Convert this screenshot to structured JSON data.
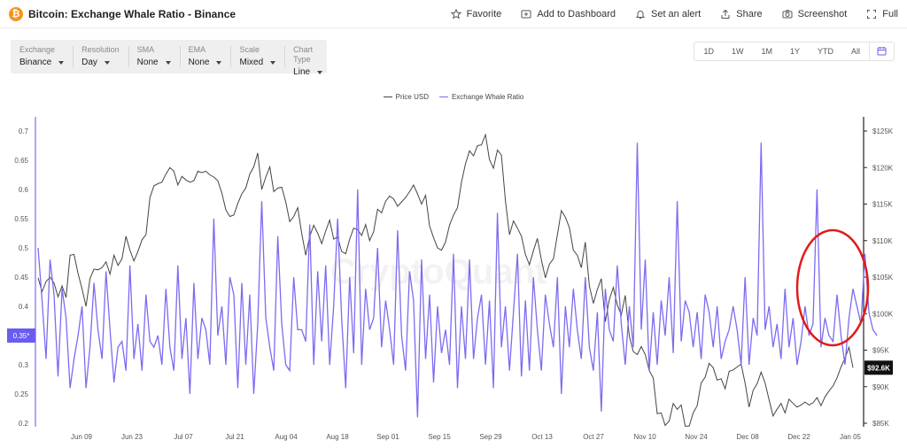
{
  "header": {
    "title": "Bitcoin: Exchange Whale Ratio - Binance",
    "actions": [
      {
        "label": "Favorite",
        "icon": "star-icon"
      },
      {
        "label": "Add to Dashboard",
        "icon": "dashboard-add-icon"
      },
      {
        "label": "Set an alert",
        "icon": "bell-icon"
      },
      {
        "label": "Share",
        "icon": "share-icon"
      },
      {
        "label": "Screenshot",
        "icon": "camera-icon"
      },
      {
        "label": "Full",
        "icon": "fullscreen-icon"
      }
    ]
  },
  "controls": [
    {
      "label": "Exchange",
      "value": "Binance"
    },
    {
      "label": "Resolution",
      "value": "Day"
    },
    {
      "label": "SMA",
      "value": "None"
    },
    {
      "label": "EMA",
      "value": "None"
    },
    {
      "label": "Scale",
      "value": "Mixed"
    },
    {
      "label": "Chart Type",
      "value": "Line"
    }
  ],
  "ranges": [
    "1D",
    "1W",
    "1M",
    "1Y",
    "YTD",
    "All"
  ],
  "watermark": "CryptoQuant",
  "colors": {
    "price": "#444444",
    "ratio": "#7b6cf0",
    "annotation": "#e01b1b"
  },
  "chart_data": {
    "type": "line",
    "legend_position": "top-center",
    "x_ticks": [
      "Jun 09",
      "Jun 23",
      "Jul 07",
      "Jul 21",
      "Aug 04",
      "Aug 18",
      "Sep 01",
      "Sep 15",
      "Sep 29",
      "Oct 13",
      "Oct 27",
      "Nov 10",
      "Nov 24",
      "Dec 08",
      "Dec 22",
      "Jan 05"
    ],
    "y_left_ticks": [
      "0.7",
      "0.65",
      "0.6",
      "0.55",
      "0.5",
      "0.45",
      "0.4",
      "0.35",
      "0.3",
      "0.25",
      "0.2"
    ],
    "y_left_range": [
      0.2,
      0.7
    ],
    "y_right_ticks": [
      "$125K",
      "$120K",
      "$115K",
      "$110K",
      "$105K",
      "$100K",
      "$95K",
      "$90K",
      "$85K"
    ],
    "y_right_range": [
      85000,
      125000
    ],
    "current_left_label": "0.35*",
    "current_left_value": 0.35,
    "current_right_label": "$92.6K",
    "current_right_value": 92600,
    "series": [
      {
        "name": "Price USD",
        "axis": "right",
        "values": [
          104900,
          103000,
          104400,
          105000,
          104200,
          102300,
          103800,
          102200,
          108000,
          108100,
          105500,
          103400,
          101000,
          104800,
          106100,
          106000,
          106300,
          107100,
          105400,
          108000,
          106600,
          107500,
          110600,
          108700,
          107200,
          108500,
          110100,
          110800,
          115900,
          117500,
          117800,
          118000,
          119100,
          120000,
          119500,
          117600,
          118800,
          118300,
          118000,
          118200,
          119500,
          119300,
          119500,
          119000,
          118700,
          118200,
          116500,
          114200,
          113300,
          113500,
          115100,
          116400,
          117200,
          119100,
          120100,
          122000,
          117000,
          118700,
          120100,
          116700,
          117200,
          117300,
          115300,
          112600,
          113300,
          114500,
          111000,
          108000,
          110600,
          112100,
          111000,
          109600,
          111300,
          112800,
          110200,
          110500,
          108500,
          108200,
          110200,
          111700,
          111500,
          110700,
          112200,
          110000,
          111200,
          114300,
          113800,
          115400,
          116100,
          115700,
          114700,
          115300,
          115900,
          116700,
          117600,
          116400,
          115000,
          116200,
          112000,
          110400,
          109000,
          108700,
          109800,
          112100,
          113500,
          114500,
          118000,
          120500,
          122300,
          121600,
          123000,
          123100,
          124500,
          121100,
          119900,
          122400,
          121700,
          115500,
          110800,
          112700,
          111700,
          110600,
          108100,
          106700,
          108600,
          110300,
          107400,
          104900,
          106800,
          107500,
          110800,
          114100,
          113200,
          111800,
          108700,
          108000,
          106300,
          109800,
          103800,
          101400,
          103300,
          104800,
          98900,
          101900,
          103600,
          101200,
          99800,
          102500,
          96900,
          94800,
          94400,
          95500,
          94400,
          92200,
          91200,
          86300,
          86400,
          84700,
          85300,
          87700,
          86900,
          87500,
          84600,
          84600,
          86400,
          87400,
          90500,
          91300,
          93200,
          92600,
          90900,
          91100,
          89700,
          92100,
          92300,
          92700,
          93100,
          90500,
          87200,
          89500,
          90400,
          92000,
          90500,
          88200,
          86000,
          86900,
          87700,
          86400,
          88300,
          87700,
          87200,
          87500,
          87900,
          87500,
          87800,
          88500,
          87400,
          88600,
          89400,
          90100,
          91200,
          92700,
          93900,
          95400,
          92600
        ]
      },
      {
        "name": "Exchange Whale Ratio",
        "axis": "left",
        "values": [
          0.5,
          0.41,
          0.31,
          0.48,
          0.42,
          0.28,
          0.43,
          0.38,
          0.26,
          0.31,
          0.35,
          0.4,
          0.26,
          0.33,
          0.44,
          0.36,
          0.31,
          0.46,
          0.36,
          0.27,
          0.33,
          0.34,
          0.29,
          0.47,
          0.31,
          0.37,
          0.29,
          0.42,
          0.34,
          0.33,
          0.35,
          0.3,
          0.43,
          0.33,
          0.29,
          0.47,
          0.31,
          0.38,
          0.25,
          0.44,
          0.31,
          0.38,
          0.36,
          0.3,
          0.55,
          0.35,
          0.4,
          0.3,
          0.45,
          0.42,
          0.26,
          0.44,
          0.3,
          0.42,
          0.25,
          0.37,
          0.58,
          0.38,
          0.33,
          0.29,
          0.52,
          0.37,
          0.3,
          0.29,
          0.45,
          0.36,
          0.36,
          0.34,
          0.54,
          0.3,
          0.46,
          0.34,
          0.47,
          0.3,
          0.4,
          0.55,
          0.38,
          0.26,
          0.45,
          0.32,
          0.6,
          0.3,
          0.43,
          0.36,
          0.38,
          0.5,
          0.33,
          0.41,
          0.36,
          0.3,
          0.53,
          0.35,
          0.29,
          0.46,
          0.41,
          0.21,
          0.48,
          0.31,
          0.42,
          0.27,
          0.4,
          0.32,
          0.36,
          0.3,
          0.49,
          0.26,
          0.4,
          0.31,
          0.48,
          0.31,
          0.38,
          0.42,
          0.3,
          0.41,
          0.26,
          0.56,
          0.33,
          0.4,
          0.29,
          0.39,
          0.49,
          0.28,
          0.41,
          0.29,
          0.45,
          0.36,
          0.29,
          0.42,
          0.37,
          0.33,
          0.45,
          0.25,
          0.4,
          0.33,
          0.43,
          0.36,
          0.31,
          0.45,
          0.33,
          0.29,
          0.39,
          0.22,
          0.43,
          0.36,
          0.34,
          0.47,
          0.37,
          0.3,
          0.4,
          0.33,
          0.68,
          0.36,
          0.48,
          0.29,
          0.39,
          0.3,
          0.41,
          0.35,
          0.45,
          0.32,
          0.58,
          0.34,
          0.41,
          0.39,
          0.33,
          0.39,
          0.31,
          0.42,
          0.39,
          0.33,
          0.4,
          0.31,
          0.34,
          0.36,
          0.4,
          0.36,
          0.3,
          0.45,
          0.3,
          0.38,
          0.35,
          0.68,
          0.36,
          0.4,
          0.33,
          0.37,
          0.31,
          0.43,
          0.33,
          0.38,
          0.3,
          0.34,
          0.4,
          0.35,
          0.37,
          0.6,
          0.33,
          0.38,
          0.35,
          0.34,
          0.42,
          0.35,
          0.3,
          0.38,
          0.43,
          0.4,
          0.37,
          0.49,
          0.39,
          0.36,
          0.35
        ]
      }
    ]
  }
}
